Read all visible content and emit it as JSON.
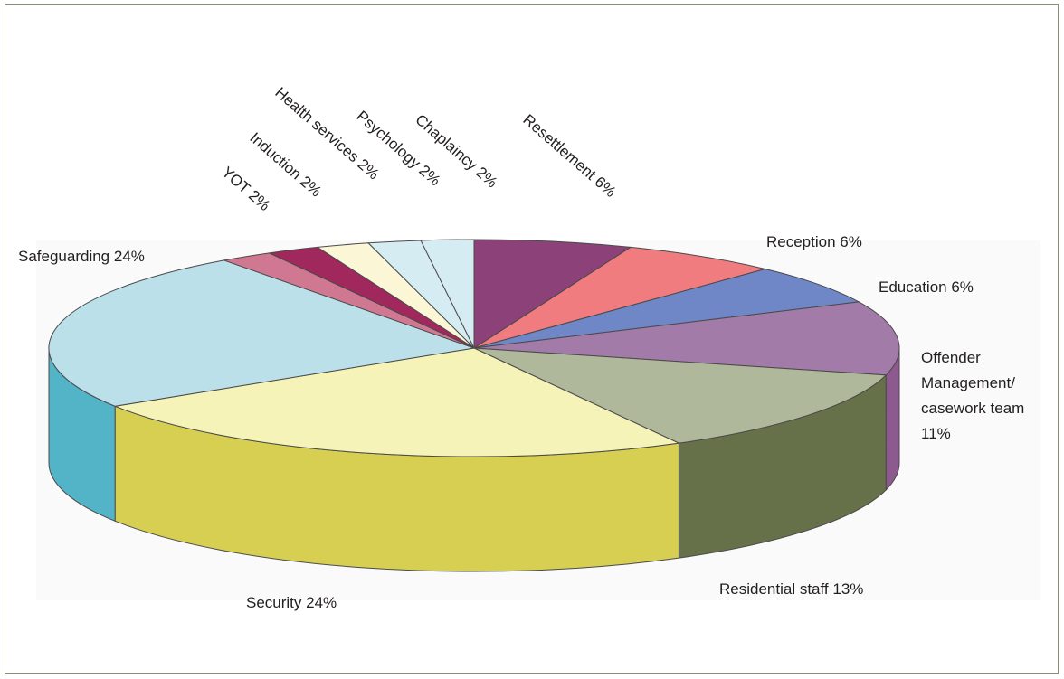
{
  "chart_data": {
    "type": "pie",
    "title": "",
    "slices": [
      {
        "label": "Resettlement 6%",
        "value": 6,
        "color": "#8c4278"
      },
      {
        "label": "Reception 6%",
        "value": 6,
        "color": "#f07c80"
      },
      {
        "label": "Education 6%",
        "value": 6,
        "color": "#6f87c6"
      },
      {
        "label_lines": [
          "Offender",
          "Management/",
          "casework team",
          "11%"
        ],
        "value": 11,
        "color": "#a27ba8"
      },
      {
        "label": "Residential staff 13%",
        "value": 13,
        "color": "#b0b89c"
      },
      {
        "label": "Security 24%",
        "value": 24,
        "color": "#f6f3b8"
      },
      {
        "label": "Safeguarding 24%",
        "value": 24,
        "color": "#bce0ea"
      },
      {
        "label": "YOT 2%",
        "value": 2,
        "color": "#d07892"
      },
      {
        "label": "Induction 2%",
        "value": 2,
        "color": "#a0285c"
      },
      {
        "label": "Health services 2%",
        "value": 2,
        "color": "#fbf6d6"
      },
      {
        "label": "Psychology 2%",
        "value": 2,
        "color": "#d6ecf3"
      },
      {
        "label": "Chaplaincy 2%",
        "value": 2,
        "color": "#d6ecf3"
      }
    ],
    "label_texts": {
      "resettlement": "Resettlement 6%",
      "reception": "Reception 6%",
      "education": "Education 6%",
      "offender_1": "Offender",
      "offender_2": "Management/",
      "offender_3": "casework team",
      "offender_4": "11%",
      "residential": "Residential staff 13%",
      "security": "Security 24%",
      "safeguarding": "Safeguarding 24%",
      "yot": "YOT 2%",
      "induction": "Induction 2%",
      "health": "Health services 2%",
      "psychology": "Psychology 2%",
      "chaplaincy": "Chaplaincy 2%"
    }
  }
}
